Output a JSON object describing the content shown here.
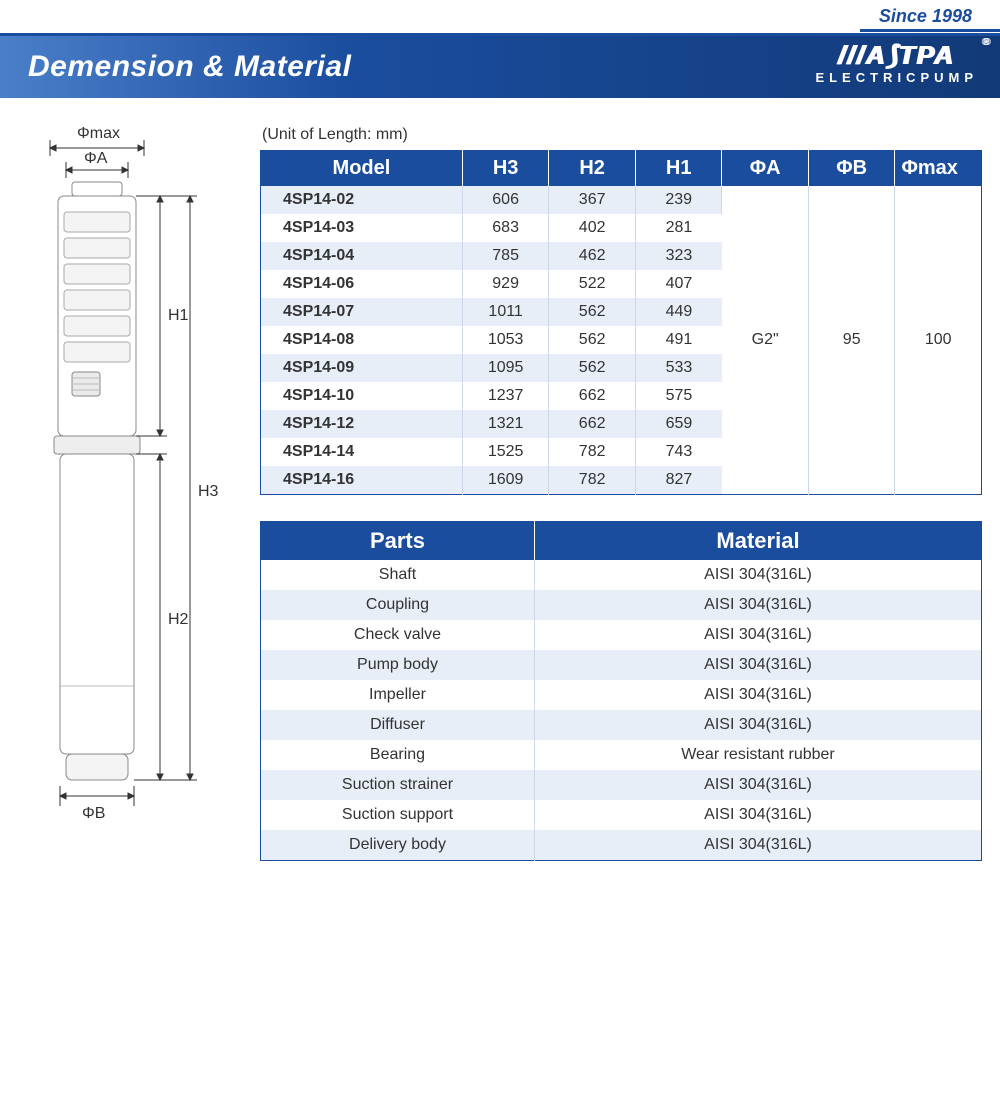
{
  "header": {
    "since": "Since 1998",
    "title": "Demension & Material",
    "brand_logo": "///A⟆TPA",
    "brand_sub": "ELECTRICPUMP"
  },
  "unit_note": "(Unit of Length: mm)",
  "dim_table": {
    "headers": [
      "Model",
      "H3",
      "H2",
      "H1",
      "ΦA",
      "ΦB",
      "Φmax"
    ],
    "rows": [
      {
        "model": "4SP14-02",
        "h3": "606",
        "h2": "367",
        "h1": "239"
      },
      {
        "model": "4SP14-03",
        "h3": "683",
        "h2": "402",
        "h1": "281"
      },
      {
        "model": "4SP14-04",
        "h3": "785",
        "h2": "462",
        "h1": "323"
      },
      {
        "model": "4SP14-06",
        "h3": "929",
        "h2": "522",
        "h1": "407"
      },
      {
        "model": "4SP14-07",
        "h3": "1011",
        "h2": "562",
        "h1": "449"
      },
      {
        "model": "4SP14-08",
        "h3": "1053",
        "h2": "562",
        "h1": "491"
      },
      {
        "model": "4SP14-09",
        "h3": "1095",
        "h2": "562",
        "h1": "533"
      },
      {
        "model": "4SP14-10",
        "h3": "1237",
        "h2": "662",
        "h1": "575"
      },
      {
        "model": "4SP14-12",
        "h3": "1321",
        "h2": "662",
        "h1": "659"
      },
      {
        "model": "4SP14-14",
        "h3": "1525",
        "h2": "782",
        "h1": "743"
      },
      {
        "model": "4SP14-16",
        "h3": "1609",
        "h2": "782",
        "h1": "827"
      }
    ],
    "phiA": "G2\"",
    "phiB": "95",
    "phiMax": "100"
  },
  "mat_table": {
    "headers": [
      "Parts",
      "Material"
    ],
    "rows": [
      {
        "part": "Shaft",
        "material": "AISI 304(316L)"
      },
      {
        "part": "Coupling",
        "material": "AISI 304(316L)"
      },
      {
        "part": "Check valve",
        "material": "AISI 304(316L)"
      },
      {
        "part": "Pump body",
        "material": "AISI 304(316L)"
      },
      {
        "part": "Impeller",
        "material": "AISI 304(316L)"
      },
      {
        "part": "Diffuser",
        "material": "AISI 304(316L)"
      },
      {
        "part": "Bearing",
        "material": "Wear resistant rubber"
      },
      {
        "part": "Suction strainer",
        "material": "AISI 304(316L)"
      },
      {
        "part": "Suction support",
        "material": "AISI 304(316L)"
      },
      {
        "part": "Delivery body",
        "material": "AISI 304(316L)"
      }
    ]
  },
  "diagram": {
    "labels": {
      "phimax": "Φmax",
      "phiA": "ΦA",
      "phiB": "ΦB",
      "h1": "H1",
      "h2": "H2",
      "h3": "H3"
    },
    "colors": {
      "stroke": "#333333",
      "fill": "#ffffff",
      "light": "#f2f2f2"
    }
  },
  "colors": {
    "primary": "#1a4d9e",
    "row_even": "#e8eef8",
    "row_odd": "#ffffff",
    "border_light": "#cfd8e8"
  }
}
